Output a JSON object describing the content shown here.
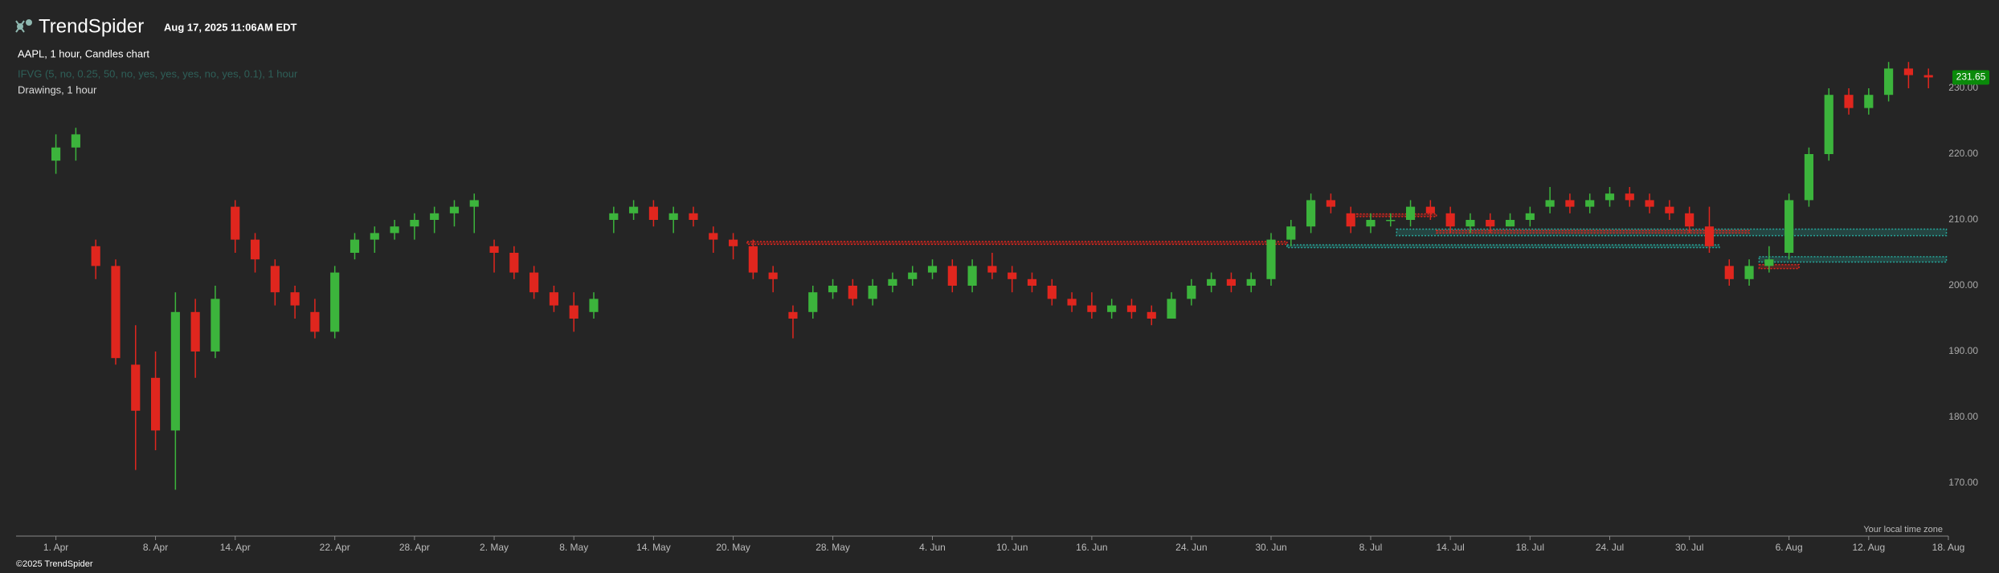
{
  "header": {
    "brand": "TrendSpider",
    "timestamp": "Aug 17, 2025 11:06AM EDT",
    "chart_label": "AAPL, 1 hour, Candles chart",
    "indicator_label": "IFVG (5, no, 0.25, 50, no, yes, yes, yes, no, yes, 0.1), 1 hour",
    "drawings_label": "Drawings, 1 hour"
  },
  "footer": {
    "copyright": "©2025 TrendSpider",
    "timezone_note": "Your local time zone"
  },
  "chart_data": {
    "type": "candlestick",
    "up_color": "#3cb43c",
    "down_color": "#e0261e",
    "xlim": [
      -2,
      95
    ],
    "ylim": [
      162,
      240
    ],
    "xticks": [
      {
        "value": 0,
        "label": "1. Apr"
      },
      {
        "value": 5,
        "label": "8. Apr"
      },
      {
        "value": 9,
        "label": "14. Apr"
      },
      {
        "value": 14,
        "label": "22. Apr"
      },
      {
        "value": 18,
        "label": "28. Apr"
      },
      {
        "value": 22,
        "label": "2. May"
      },
      {
        "value": 26,
        "label": "8. May"
      },
      {
        "value": 30,
        "label": "14. May"
      },
      {
        "value": 34,
        "label": "20. May"
      },
      {
        "value": 39,
        "label": "28. May"
      },
      {
        "value": 44,
        "label": "4. Jun"
      },
      {
        "value": 48,
        "label": "10. Jun"
      },
      {
        "value": 52,
        "label": "16. Jun"
      },
      {
        "value": 57,
        "label": "24. Jun"
      },
      {
        "value": 61,
        "label": "30. Jun"
      },
      {
        "value": 66,
        "label": "8. Jul"
      },
      {
        "value": 70,
        "label": "14. Jul"
      },
      {
        "value": 74,
        "label": "18. Jul"
      },
      {
        "value": 78,
        "label": "24. Jul"
      },
      {
        "value": 82,
        "label": "30. Jul"
      },
      {
        "value": 87,
        "label": "6. Aug"
      },
      {
        "value": 91,
        "label": "12. Aug"
      },
      {
        "value": 95,
        "label": "18. Aug"
      }
    ],
    "yticks": [
      {
        "value": 170,
        "label": "170.00"
      },
      {
        "value": 180,
        "label": "180.00"
      },
      {
        "value": 190,
        "label": "190.00"
      },
      {
        "value": 200,
        "label": "200.00"
      },
      {
        "value": 210,
        "label": "210.00"
      },
      {
        "value": 220,
        "label": "220.00"
      },
      {
        "value": 230,
        "label": "230.00"
      }
    ],
    "x": [
      0,
      1,
      2,
      3,
      4,
      5,
      6,
      7,
      8,
      9,
      10,
      11,
      12,
      13,
      14,
      15,
      16,
      17,
      18,
      19,
      20,
      21,
      22,
      23,
      24,
      25,
      26,
      27,
      28,
      29,
      30,
      31,
      32,
      33,
      34,
      35,
      36,
      37,
      38,
      39,
      40,
      41,
      42,
      43,
      44,
      45,
      46,
      47,
      48,
      49,
      50,
      51,
      52,
      53,
      54,
      55,
      56,
      57,
      58,
      59,
      60,
      61,
      62,
      63,
      64,
      65,
      66,
      67,
      68,
      69,
      70,
      71,
      72,
      73,
      74,
      75,
      76,
      77,
      78,
      79,
      80,
      81,
      82,
      83,
      84,
      85,
      86,
      87,
      88,
      89,
      90,
      91,
      92,
      93,
      94
    ],
    "open": [
      219,
      221,
      206,
      203,
      188,
      186,
      178,
      196,
      190,
      212,
      207,
      203,
      199,
      196,
      193,
      205,
      207,
      208,
      209,
      210,
      211,
      212,
      206,
      205,
      202,
      199,
      197,
      196,
      210,
      211,
      212,
      210,
      211,
      208,
      207,
      206,
      202,
      196,
      196,
      199,
      200,
      198,
      200,
      201,
      202,
      203,
      200,
      203,
      202,
      201,
      200,
      198,
      197,
      196,
      197,
      196,
      195,
      198,
      200,
      201,
      200,
      201,
      207,
      209,
      213,
      211,
      209,
      210,
      210,
      212,
      211,
      209,
      210,
      209,
      210,
      212,
      213,
      212,
      213,
      214,
      213,
      212,
      211,
      209,
      203,
      201,
      203,
      205,
      213,
      220,
      229,
      227,
      229,
      233,
      232
    ],
    "high": [
      223,
      224,
      207,
      204,
      194,
      190,
      199,
      198,
      200,
      213,
      208,
      204,
      200,
      198,
      203,
      208,
      209,
      210,
      211,
      212,
      213,
      214,
      207,
      206,
      203,
      200,
      199,
      199,
      212,
      213,
      213,
      212,
      212,
      209,
      208,
      207,
      203,
      197,
      200,
      201,
      201,
      201,
      202,
      203,
      204,
      204,
      204,
      205,
      203,
      202,
      201,
      199,
      199,
      198,
      198,
      197,
      199,
      201,
      202,
      202,
      202,
      208,
      210,
      214,
      214,
      212,
      211,
      211,
      213,
      213,
      212,
      211,
      211,
      211,
      212,
      215,
      214,
      214,
      215,
      215,
      214,
      213,
      212,
      212,
      204,
      204,
      206,
      214,
      221,
      230,
      230,
      230,
      234,
      234,
      233
    ],
    "low": [
      217,
      219,
      201,
      188,
      172,
      175,
      169,
      186,
      189,
      205,
      202,
      197,
      195,
      192,
      192,
      204,
      205,
      207,
      207,
      208,
      209,
      208,
      202,
      201,
      198,
      196,
      193,
      195,
      208,
      210,
      209,
      208,
      209,
      205,
      204,
      201,
      199,
      192,
      195,
      198,
      197,
      197,
      199,
      200,
      201,
      199,
      199,
      201,
      199,
      199,
      197,
      196,
      195,
      195,
      195,
      194,
      195,
      197,
      199,
      199,
      199,
      200,
      206,
      208,
      211,
      208,
      208,
      209,
      209,
      210,
      208,
      208,
      208,
      209,
      209,
      211,
      211,
      211,
      212,
      212,
      211,
      210,
      208,
      205,
      200,
      200,
      202,
      204,
      212,
      219,
      226,
      226,
      228,
      230,
      230
    ],
    "close": [
      221,
      223,
      203,
      189,
      181,
      178,
      196,
      190,
      198,
      207,
      204,
      199,
      197,
      193,
      202,
      207,
      208,
      209,
      210,
      211,
      212,
      213,
      205,
      202,
      199,
      197,
      195,
      198,
      211,
      212,
      210,
      211,
      210,
      207,
      206,
      202,
      201,
      195,
      199,
      200,
      198,
      200,
      201,
      202,
      203,
      200,
      203,
      202,
      201,
      200,
      198,
      197,
      196,
      197,
      196,
      195,
      198,
      200,
      201,
      200,
      201,
      207,
      209,
      213,
      212,
      209,
      210,
      210,
      212,
      211,
      209,
      210,
      209,
      210,
      211,
      213,
      212,
      213,
      214,
      213,
      212,
      211,
      209,
      206,
      201,
      203,
      204,
      213,
      220,
      229,
      227,
      229,
      233,
      232,
      231.65
    ],
    "last_price": 231.65,
    "zones": [
      {
        "x": [
          34.7,
          61.8
        ],
        "y": [
          206.3,
          206.7
        ],
        "color": "#e0261e"
      },
      {
        "x": [
          61.8,
          83.5
        ],
        "y": [
          205.8,
          206.2
        ],
        "color": "#26a69a"
      },
      {
        "x": [
          65.3,
          69.3
        ],
        "y": [
          210.5,
          210.9
        ],
        "color": "#e0261e"
      },
      {
        "x": [
          67.3,
          94.9
        ],
        "y": [
          207.6,
          208.6
        ],
        "color": "#26a69a"
      },
      {
        "x": [
          69.3,
          85.0
        ],
        "y": [
          208.0,
          208.4
        ],
        "color": "#e0261e"
      },
      {
        "x": [
          85.5,
          94.9
        ],
        "y": [
          203.6,
          204.4
        ],
        "color": "#26a69a"
      },
      {
        "x": [
          85.5,
          87.5
        ],
        "y": [
          202.6,
          203.2
        ],
        "color": "#e0261e"
      }
    ]
  }
}
